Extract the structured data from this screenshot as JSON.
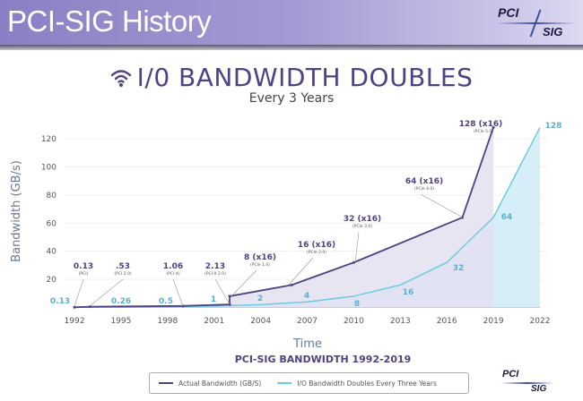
{
  "header": {
    "title": "PCI-SIG History",
    "logo_text": "PCI-SIG"
  },
  "headline": {
    "icon": "wifi-icon",
    "title": "I/0 BANDWIDTH DOUBLES",
    "subtitle": "Every 3 Years"
  },
  "chart_data": {
    "type": "area",
    "title": "PCI-SIG BANDWIDTH 1992-2019",
    "xlabel": "Time",
    "ylabel": "Bandwidth (GB/s)",
    "xlim": [
      1992,
      2022
    ],
    "ylim": [
      0,
      125
    ],
    "x_ticks": [
      "1992",
      "1995",
      "1998",
      "2001",
      "2004",
      "2007",
      "2010",
      "2013",
      "2016",
      "2019",
      "2022"
    ],
    "y_ticks": [
      "20",
      "40",
      "60",
      "80",
      "100",
      "120"
    ],
    "grid": true,
    "legend_position": "bottom",
    "series": [
      {
        "name": "Actual Bandwidth (GB/S)",
        "color": "#4b4383",
        "fill": "#e4e0f1",
        "points": [
          {
            "x": 1992,
            "y": 0.13,
            "label": "0.13",
            "sublabel": "(PCI)"
          },
          {
            "x": 1993,
            "y": 0.53,
            "label": ".53",
            "sublabel": "(PCI 2.0)"
          },
          {
            "x": 1999,
            "y": 1.06,
            "label": "1.06",
            "sublabel": "(PCI-X)"
          },
          {
            "x": 2002,
            "y": 2.13,
            "label": "2.13",
            "sublabel": "(PCI-X 2.0)"
          },
          {
            "x": 2002,
            "y": 8,
            "label": "8 (x16)",
            "sublabel": "(PCIe 1.0)"
          },
          {
            "x": 2006,
            "y": 16,
            "label": "16 (x16)",
            "sublabel": "(PCIe 2.0)"
          },
          {
            "x": 2010,
            "y": 32,
            "label": "32 (x16)",
            "sublabel": "(PCIe 3.0)"
          },
          {
            "x": 2017,
            "y": 64,
            "label": "64 (x16)",
            "sublabel": "(PCIe 4.0)"
          },
          {
            "x": 2019,
            "y": 128,
            "label": "128 (x16)",
            "sublabel": "(PCIe 5.0)"
          }
        ]
      },
      {
        "name": "I/O Bandwidth Doubles Every Three Years",
        "color": "#6ccbe0",
        "fill": "#d6eef7",
        "points": [
          {
            "x": 1992,
            "y": 0.13,
            "label": "0.13"
          },
          {
            "x": 1995,
            "y": 0.26,
            "label": "0.26"
          },
          {
            "x": 1998,
            "y": 0.5,
            "label": "0.5"
          },
          {
            "x": 2001,
            "y": 1,
            "label": "1"
          },
          {
            "x": 2004,
            "y": 2,
            "label": "2"
          },
          {
            "x": 2007,
            "y": 4,
            "label": "4"
          },
          {
            "x": 2010,
            "y": 8,
            "label": "8"
          },
          {
            "x": 2013,
            "y": 16,
            "label": "16"
          },
          {
            "x": 2016,
            "y": 32,
            "label": "32"
          },
          {
            "x": 2019,
            "y": 64,
            "label": "64"
          },
          {
            "x": 2022,
            "y": 128,
            "label": "128"
          }
        ]
      }
    ]
  }
}
